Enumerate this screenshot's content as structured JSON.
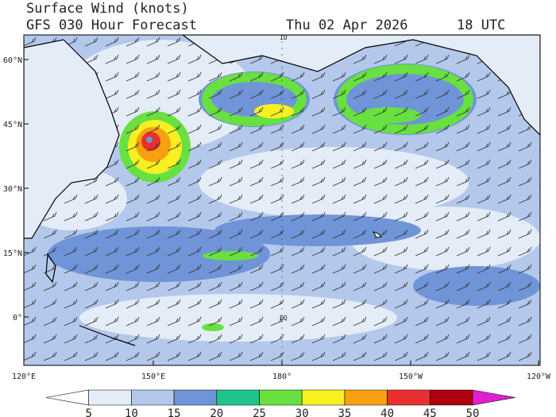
{
  "header": {
    "title": "Surface Wind (knots)",
    "subtitle": "GFS 030 Hour Forecast",
    "date": "Thu 02 Apr 2026",
    "time": "18 UTC"
  },
  "map": {
    "lat_labels": [
      "60°N",
      "45°N",
      "30°N",
      "15°N",
      "0°"
    ],
    "lon_labels": [
      "120°E",
      "150°E",
      "180°",
      "150°W",
      "120°W"
    ],
    "markers": [
      "ID",
      "EQ"
    ]
  },
  "colorbar": {
    "levels": [
      5,
      10,
      15,
      20,
      25,
      30,
      35,
      40,
      45,
      50
    ],
    "colors": [
      "#ffffff",
      "#e4ecf8",
      "#b4c8ec",
      "#7094d8",
      "#1fc48c",
      "#68e040",
      "#f8f020",
      "#f8a010",
      "#e83030",
      "#b00010",
      "#e020d0"
    ]
  }
}
